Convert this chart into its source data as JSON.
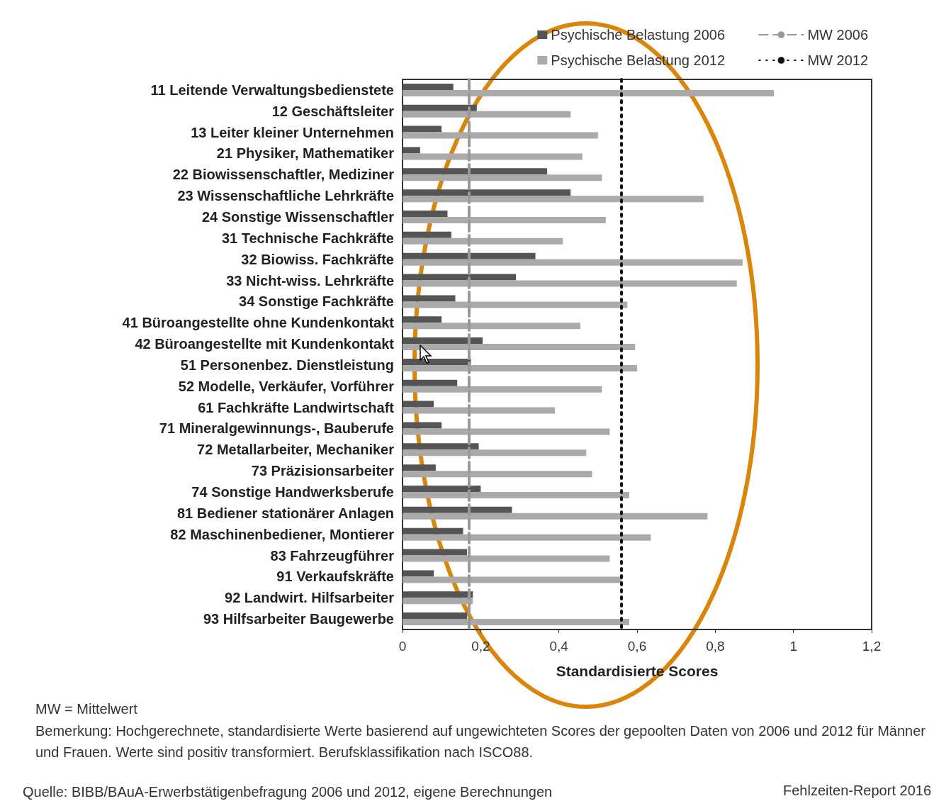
{
  "chart_data": {
    "type": "bar",
    "orientation": "horizontal",
    "categories": [
      "11 Leitende Verwaltungsbedienstete",
      "12 Geschäftsleiter",
      "13 Leiter kleiner Unternehmen",
      "21 Physiker, Mathematiker",
      "22 Biowissenschaftler, Mediziner",
      "23 Wissenschaftliche Lehrkräfte",
      "24 Sonstige Wissenschaftler",
      "31 Technische Fachkräfte",
      "32 Biowiss. Fachkräfte",
      "33 Nicht-wiss. Lehrkräfte",
      "34 Sonstige Fachkräfte",
      "41 Büroangestellte ohne Kundenkontakt",
      "42 Büroangestellte mit Kundenkontakt",
      "51 Personenbez. Dienstleistung",
      "52 Modelle, Verkäufer, Vorführer",
      "61 Fachkräfte Landwirtschaft",
      "71 Mineralgewinnungs-, Bauberufe",
      "72 Metallarbeiter, Mechaniker",
      "73 Präzisionsarbeiter",
      "74 Sonstige Handwerksberufe",
      "81 Bediener stationärer Anlagen",
      "82 Maschinenbediener, Montierer",
      "83 Fahrzeugführer",
      "91 Verkaufskräfte",
      "92 Landwirt. Hilfsarbeiter",
      "93 Hilfsarbeiter Baugewerbe"
    ],
    "series": [
      {
        "name": "Psychische Belastung 2006",
        "color": "#555555",
        "values": [
          0.13,
          0.19,
          0.1,
          0.045,
          0.37,
          0.43,
          0.115,
          0.125,
          0.34,
          0.29,
          0.135,
          0.1,
          0.205,
          0.175,
          0.14,
          0.08,
          0.1,
          0.195,
          0.085,
          0.2,
          0.28,
          0.155,
          0.165,
          0.08,
          0.18,
          0.165
        ]
      },
      {
        "name": "Psychische Belastung 2012",
        "color": "#aaaaaa",
        "values": [
          0.95,
          0.43,
          0.5,
          0.46,
          0.51,
          0.77,
          0.52,
          0.41,
          0.87,
          0.855,
          0.575,
          0.455,
          0.595,
          0.6,
          0.51,
          0.39,
          0.53,
          0.47,
          0.485,
          0.58,
          0.78,
          0.635,
          0.53,
          0.56,
          0.18,
          0.58
        ]
      }
    ],
    "xlim": [
      0,
      1.2
    ],
    "xticks": [
      0,
      {
        "value": 0.2,
        "label": "0,2"
      },
      {
        "value": 0.4,
        "label": "0,4"
      },
      {
        "value": 0.6,
        "label": "0,6"
      },
      {
        "value": 0.8,
        "label": "0,8"
      },
      1,
      {
        "value": 1.2,
        "label": "1,2"
      }
    ],
    "xlabel": "Standardisierte Scores",
    "ref_lines": [
      {
        "axis": "x",
        "value": 0.175,
        "label": "MW 2006",
        "color": "#999999",
        "line_style": "dashed"
      },
      {
        "axis": "x",
        "value": 0.56,
        "label": "MW 2012",
        "color": "#111111",
        "line_style": "dotted"
      }
    ],
    "grid": false,
    "legend": "top right",
    "annotations": [
      "MW = Mittelwert",
      "Bemerkung: Hochgerechnete, standardisierte Werte basierend auf ungewichteten Scores der gepoolten Daten von 2006 und 2012 für Männer und Frauen. Werte sind positiv transformiert. Berufsklassifikation nach ISCO88.",
      "Quelle: BIBB/BAuA-Erwerbstätigenbefragung 2006 und 2012, eigene Berechnungen",
      "Fehlzeiten-Report 2016"
    ]
  }
}
